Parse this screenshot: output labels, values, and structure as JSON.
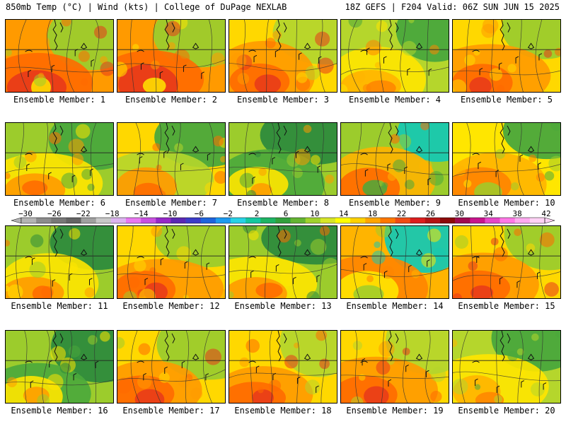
{
  "header": {
    "left_text": "850mb Temp (°C) | Wind (kts) | College of DuPage NEXLAB",
    "right_text": "18Z GEFS | F204 Valid: 06Z SUN JUN 15 2025"
  },
  "members": [
    {
      "label": "Ensemble Member: 1",
      "palette": [
        "#ff9a00",
        "#ff6a00",
        "#e8381a",
        "#ffe600",
        "#9ccc2c"
      ]
    },
    {
      "label": "Ensemble Member: 2",
      "palette": [
        "#ff9a00",
        "#ff6a00",
        "#e8381a",
        "#ffe600",
        "#9ccc2c"
      ]
    },
    {
      "label": "Ensemble Member: 3",
      "palette": [
        "#ffd800",
        "#ff9a00",
        "#ff6a00",
        "#e8381a",
        "#b5d62c"
      ]
    },
    {
      "label": "Ensemble Member: 4",
      "palette": [
        "#b5d62c",
        "#ffe600",
        "#ffb400",
        "#ff8400",
        "#4aa83c"
      ]
    },
    {
      "label": "Ensemble Member: 5",
      "palette": [
        "#ffd800",
        "#ff9a00",
        "#ff6a00",
        "#e8381a",
        "#9ccc2c"
      ]
    },
    {
      "label": "Ensemble Member: 6",
      "palette": [
        "#9ccc2c",
        "#ffe600",
        "#ff9a00",
        "#ff6a00",
        "#4aa83c"
      ]
    },
    {
      "label": "Ensemble Member: 7",
      "palette": [
        "#ffd800",
        "#b5d62c",
        "#ff9a00",
        "#ff6a00",
        "#4aa83c"
      ]
    },
    {
      "label": "Ensemble Member: 8",
      "palette": [
        "#9ccc2c",
        "#4aa83c",
        "#ffe600",
        "#ff9a00",
        "#2e8b3c"
      ]
    },
    {
      "label": "Ensemble Member: 9",
      "palette": [
        "#9ccc2c",
        "#ffb400",
        "#ff6a00",
        "#4aa83c",
        "#17c8b0"
      ]
    },
    {
      "label": "Ensemble Member: 10",
      "palette": [
        "#ffe600",
        "#ffb400",
        "#ff8400",
        "#9ccc2c",
        "#4aa83c"
      ]
    },
    {
      "label": "Ensemble Member: 11",
      "palette": [
        "#9ccc2c",
        "#ffe600",
        "#ff9a00",
        "#ff6a00",
        "#2e8b3c"
      ]
    },
    {
      "label": "Ensemble Member: 12",
      "palette": [
        "#ffd800",
        "#ff9a00",
        "#ff6a00",
        "#e8381a",
        "#9ccc2c"
      ]
    },
    {
      "label": "Ensemble Member: 13",
      "palette": [
        "#9ccc2c",
        "#ffe600",
        "#ff9a00",
        "#ff6a00",
        "#2e8b3c"
      ]
    },
    {
      "label": "Ensemble Member: 14",
      "palette": [
        "#ffb400",
        "#ff8400",
        "#ffe600",
        "#9ccc2c",
        "#17c8b0"
      ]
    },
    {
      "label": "Ensemble Member: 15",
      "palette": [
        "#ffd800",
        "#ff9a00",
        "#ff6a00",
        "#e8381a",
        "#9ccc2c"
      ]
    },
    {
      "label": "Ensemble Member: 16",
      "palette": [
        "#9ccc2c",
        "#4aa83c",
        "#ffe600",
        "#ff9a00",
        "#2e8b3c"
      ]
    },
    {
      "label": "Ensemble Member: 17",
      "palette": [
        "#ffd800",
        "#ff9a00",
        "#ff6a00",
        "#e8381a",
        "#9ccc2c"
      ]
    },
    {
      "label": "Ensemble Member: 18",
      "palette": [
        "#ffd800",
        "#ff9a00",
        "#ff6a00",
        "#e8381a",
        "#b5d62c"
      ]
    },
    {
      "label": "Ensemble Member: 19",
      "palette": [
        "#ffd800",
        "#ff9a00",
        "#ff6a00",
        "#e8381a",
        "#b5d62c"
      ]
    },
    {
      "label": "Ensemble Member: 20",
      "palette": [
        "#b5d62c",
        "#ffe600",
        "#ffb400",
        "#ff8400",
        "#4aa83c"
      ]
    }
  ],
  "colorbar": {
    "ticks": [
      "−30",
      "−26",
      "−22",
      "−18",
      "−14",
      "−10",
      "−6",
      "−2",
      "2",
      "6",
      "10",
      "14",
      "18",
      "22",
      "26",
      "30",
      "34",
      "38",
      "42"
    ],
    "colors": [
      "#b4b4b4",
      "#8c8c8c",
      "#787878",
      "#646464",
      "#a0a0a0",
      "#c8c8c8",
      "#dcb4f0",
      "#e878f0",
      "#c850e0",
      "#9628c8",
      "#5a28b4",
      "#3c3cc8",
      "#1e64dc",
      "#1e9bf0",
      "#28d2e6",
      "#14c8a0",
      "#1eb464",
      "#32a03c",
      "#64b432",
      "#a0d22d",
      "#d7e628",
      "#ffff00",
      "#ffd200",
      "#ffa500",
      "#ff7800",
      "#f04b14",
      "#dc1e1e",
      "#b41414",
      "#8c0a0a",
      "#a00a50",
      "#c8148c",
      "#e646c8",
      "#ff78e6",
      "#ffaaf0",
      "#ffd2f5"
    ]
  }
}
